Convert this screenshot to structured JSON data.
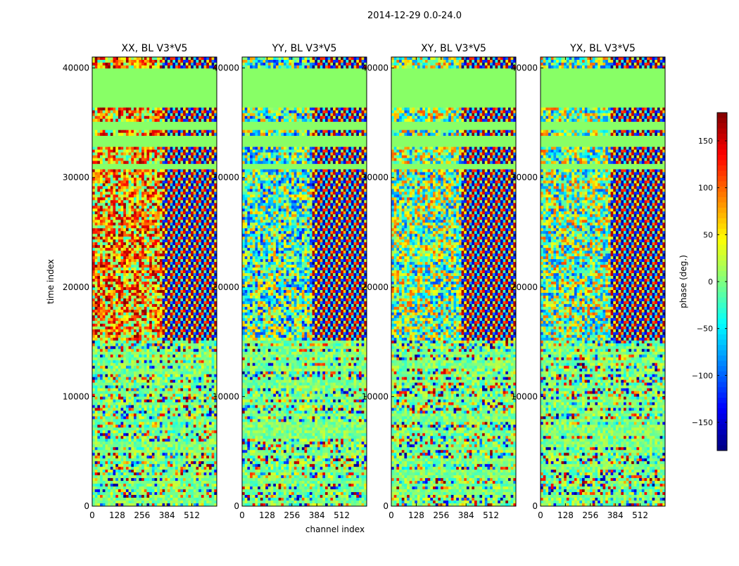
{
  "figure": {
    "title": "2014-12-29 0.0-24.0"
  },
  "chart_data": {
    "type": "heatmap",
    "panels": [
      {
        "title": "XX, BL V3*V5",
        "corr": "XX"
      },
      {
        "title": "YY, BL V3*V5",
        "corr": "YY"
      },
      {
        "title": "XY, BL V3*V5",
        "corr": "XY"
      },
      {
        "title": "YX, BL V3*V5",
        "corr": "YX"
      }
    ],
    "xlabel": "channel index",
    "ylabel": "time index",
    "xlim": [
      0,
      640
    ],
    "ylim": [
      0,
      41000
    ],
    "xticks": [
      0,
      128,
      256,
      384,
      512
    ],
    "yticks": [
      0,
      10000,
      20000,
      30000,
      40000
    ],
    "colorbar": {
      "label": "phase (deg.)",
      "range": [
        -180,
        180
      ],
      "ticks": [
        150,
        100,
        50,
        0,
        -50,
        -100,
        -150
      ],
      "tick_labels": [
        "150",
        "100",
        "50",
        "0",
        "−50",
        "−100",
        "−150"
      ],
      "colormap": "jet"
    },
    "flagged_time_ranges": [
      [
        36500,
        40000
      ],
      [
        34400,
        35000
      ],
      [
        32800,
        33800
      ],
      [
        30800,
        31200
      ]
    ],
    "flag_color": "#88ff66"
  }
}
